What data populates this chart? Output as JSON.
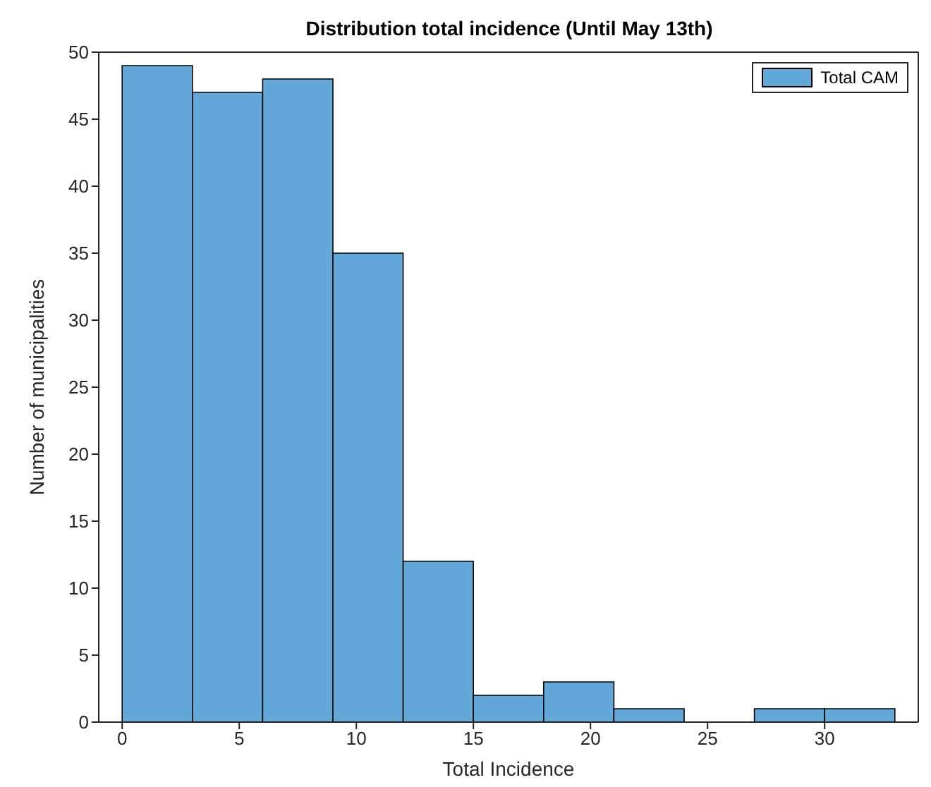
{
  "chart_data": {
    "type": "histogram",
    "title": "Distribution total incidence (Until May 13th)",
    "xlabel": "Total Incidence",
    "ylabel": "Number of municipalities",
    "bins": [
      0,
      3,
      6,
      9,
      12,
      15,
      18,
      21,
      24,
      27,
      30,
      33
    ],
    "series": [
      {
        "name": "Total CAM",
        "color": "#62a8d9",
        "values": [
          49,
          47,
          48,
          35,
          12,
          2,
          3,
          1,
          0,
          1,
          1
        ]
      }
    ],
    "xlim": [
      -1,
      34
    ],
    "xticks": [
      0,
      5,
      10,
      15,
      20,
      25,
      30
    ],
    "ylim": [
      0,
      50
    ],
    "yticks": [
      0,
      5,
      10,
      15,
      20,
      25,
      30,
      35,
      40,
      45,
      50
    ],
    "legend": "top right"
  }
}
